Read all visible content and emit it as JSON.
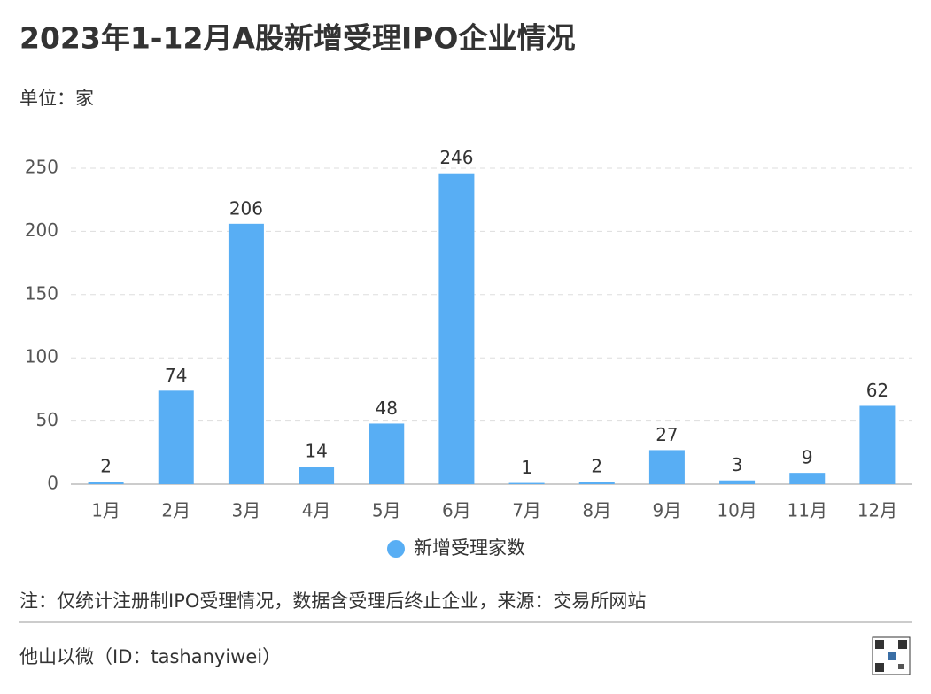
{
  "chart_data": {
    "type": "bar",
    "title": "2023年1-12月A股新增受理IPO企业情况",
    "subtitle": "单位：家",
    "categories": [
      "1月",
      "2月",
      "3月",
      "4月",
      "5月",
      "6月",
      "7月",
      "8月",
      "9月",
      "10月",
      "11月",
      "12月"
    ],
    "series": [
      {
        "name": "新增受理家数",
        "color": "#58aef4",
        "values": [
          2,
          74,
          206,
          14,
          48,
          246,
          1,
          2,
          27,
          3,
          9,
          62
        ]
      }
    ],
    "ylim": [
      0,
      250
    ],
    "yticks": [
      0,
      50,
      100,
      150,
      200,
      250
    ],
    "grid": true,
    "note": "注：仅统计注册制IPO受理情况，数据含受理后终止企业，来源：交易所网站",
    "footer": "他山以微（ID：tashanyiwei）"
  }
}
